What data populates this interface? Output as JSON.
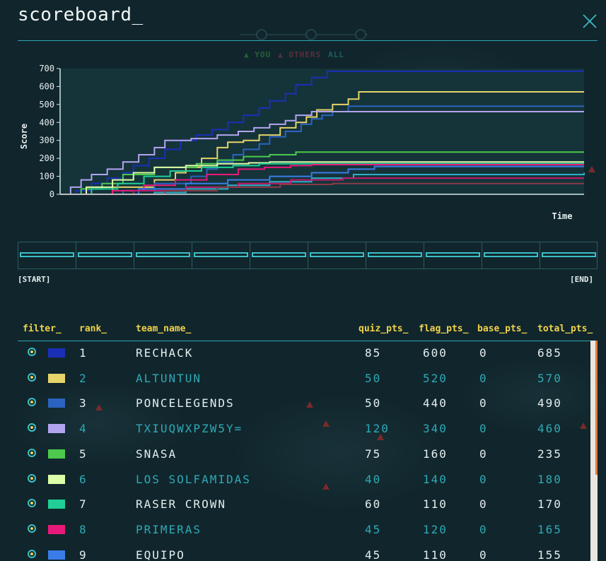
{
  "title": "scoreboard_",
  "legend_tabs": [
    {
      "label": "▲ YOU",
      "color": "#4fcf4f"
    },
    {
      "label": "▲ OTHERS",
      "color": "#e0405a"
    },
    {
      "label": "ALL",
      "color": "#3cc0c8"
    }
  ],
  "range": {
    "start_label": "[START]",
    "end_label": "[END]"
  },
  "table": {
    "headers": {
      "filter": "filter_",
      "rank": "rank_",
      "team_name": "team_name_",
      "quiz_pts": "quiz_pts_",
      "flag_pts": "flag_pts_",
      "base_pts": "base_pts_",
      "total_pts": "total_pts_"
    },
    "rows": [
      {
        "rank": "1",
        "team": "RECHACK",
        "quiz": "85",
        "flag": "600",
        "base": "0",
        "total": "685",
        "color": "#1a2fb8"
      },
      {
        "rank": "2",
        "team": "ALTUNTUN",
        "quiz": "50",
        "flag": "520",
        "base": "0",
        "total": "570",
        "color": "#e6d36a"
      },
      {
        "rank": "3",
        "team": "PONCELEGENDS",
        "quiz": "50",
        "flag": "440",
        "base": "0",
        "total": "490",
        "color": "#2a64c0"
      },
      {
        "rank": "4",
        "team": "TXIUQWXPZW5Y=",
        "quiz": "120",
        "flag": "340",
        "base": "0",
        "total": "460",
        "color": "#b3a4f0"
      },
      {
        "rank": "5",
        "team": "SNASA",
        "quiz": "75",
        "flag": "160",
        "base": "0",
        "total": "235",
        "color": "#4cc94c"
      },
      {
        "rank": "6",
        "team": "LOS SOLFAMIDAS",
        "quiz": "40",
        "flag": "140",
        "base": "0",
        "total": "180",
        "color": "#ddffa8"
      },
      {
        "rank": "7",
        "team": "RASER CROWN",
        "quiz": "60",
        "flag": "110",
        "base": "0",
        "total": "170",
        "color": "#1fcf96"
      },
      {
        "rank": "8",
        "team": "PRIMERAS",
        "quiz": "45",
        "flag": "120",
        "base": "0",
        "total": "165",
        "color": "#e8197a"
      },
      {
        "rank": "9",
        "team": "EQUIPO",
        "quiz": "45",
        "flag": "110",
        "base": "0",
        "total": "155",
        "color": "#3a7de8"
      }
    ]
  },
  "chart_data": {
    "type": "line",
    "xlabel": "Time",
    "ylabel": "Score",
    "ylim": [
      0,
      700
    ],
    "yticks": [
      0,
      100,
      200,
      300,
      400,
      500,
      600,
      700
    ],
    "xlim": [
      0,
      100
    ],
    "series": [
      {
        "color": "#1a2fb8",
        "points": [
          [
            0,
            0
          ],
          [
            3,
            20
          ],
          [
            6,
            60
          ],
          [
            9,
            90
          ],
          [
            12,
            120
          ],
          [
            14,
            160
          ],
          [
            17,
            200
          ],
          [
            20,
            250
          ],
          [
            23,
            300
          ],
          [
            26,
            330
          ],
          [
            29,
            360
          ],
          [
            32,
            400
          ],
          [
            35,
            440
          ],
          [
            38,
            480
          ],
          [
            40,
            520
          ],
          [
            43,
            560
          ],
          [
            45,
            610
          ],
          [
            48,
            650
          ],
          [
            51,
            685
          ],
          [
            100,
            685
          ]
        ]
      },
      {
        "color": "#e6d36a",
        "points": [
          [
            0,
            0
          ],
          [
            10,
            40
          ],
          [
            18,
            80
          ],
          [
            22,
            120
          ],
          [
            24,
            150
          ],
          [
            27,
            200
          ],
          [
            30,
            260
          ],
          [
            32,
            290
          ],
          [
            35,
            300
          ],
          [
            38,
            330
          ],
          [
            42,
            370
          ],
          [
            45,
            400
          ],
          [
            47,
            430
          ],
          [
            49,
            470
          ],
          [
            52,
            500
          ],
          [
            55,
            530
          ],
          [
            57,
            570
          ],
          [
            100,
            570
          ]
        ]
      },
      {
        "color": "#2a64c0",
        "points": [
          [
            0,
            0
          ],
          [
            12,
            20
          ],
          [
            18,
            60
          ],
          [
            25,
            100
          ],
          [
            28,
            140
          ],
          [
            30,
            180
          ],
          [
            33,
            220
          ],
          [
            35,
            250
          ],
          [
            38,
            280
          ],
          [
            40,
            320
          ],
          [
            43,
            350
          ],
          [
            46,
            390
          ],
          [
            48,
            420
          ],
          [
            50,
            440
          ],
          [
            52,
            460
          ],
          [
            55,
            490
          ],
          [
            100,
            490
          ]
        ]
      },
      {
        "color": "#b3a4f0",
        "points": [
          [
            0,
            0
          ],
          [
            2,
            40
          ],
          [
            4,
            80
          ],
          [
            6,
            110
          ],
          [
            9,
            140
          ],
          [
            12,
            180
          ],
          [
            15,
            220
          ],
          [
            18,
            260
          ],
          [
            20,
            300
          ],
          [
            25,
            310
          ],
          [
            30,
            330
          ],
          [
            34,
            350
          ],
          [
            37,
            370
          ],
          [
            40,
            390
          ],
          [
            43,
            410
          ],
          [
            45,
            440
          ],
          [
            48,
            460
          ],
          [
            100,
            460
          ]
        ]
      },
      {
        "color": "#4cc94c",
        "points": [
          [
            0,
            0
          ],
          [
            4,
            30
          ],
          [
            8,
            60
          ],
          [
            12,
            110
          ],
          [
            18,
            150
          ],
          [
            26,
            170
          ],
          [
            30,
            190
          ],
          [
            35,
            210
          ],
          [
            40,
            220
          ],
          [
            45,
            235
          ],
          [
            100,
            235
          ]
        ]
      },
      {
        "color": "#ddffa8",
        "points": [
          [
            0,
            0
          ],
          [
            5,
            40
          ],
          [
            10,
            80
          ],
          [
            14,
            120
          ],
          [
            18,
            150
          ],
          [
            24,
            160
          ],
          [
            30,
            170
          ],
          [
            36,
            175
          ],
          [
            40,
            180
          ],
          [
            100,
            180
          ]
        ]
      },
      {
        "color": "#1fcf96",
        "points": [
          [
            0,
            0
          ],
          [
            6,
            30
          ],
          [
            11,
            60
          ],
          [
            16,
            100
          ],
          [
            21,
            130
          ],
          [
            27,
            150
          ],
          [
            33,
            160
          ],
          [
            38,
            170
          ],
          [
            100,
            170
          ]
        ]
      },
      {
        "color": "#e8197a",
        "points": [
          [
            0,
            0
          ],
          [
            10,
            20
          ],
          [
            16,
            50
          ],
          [
            22,
            80
          ],
          [
            28,
            110
          ],
          [
            34,
            140
          ],
          [
            39,
            150
          ],
          [
            44,
            160
          ],
          [
            48,
            165
          ],
          [
            100,
            165
          ]
        ]
      },
      {
        "color": "#3a7de8",
        "points": [
          [
            0,
            0
          ],
          [
            15,
            30
          ],
          [
            24,
            60
          ],
          [
            32,
            80
          ],
          [
            40,
            100
          ],
          [
            48,
            120
          ],
          [
            55,
            140
          ],
          [
            60,
            155
          ],
          [
            100,
            155
          ]
        ]
      },
      {
        "color": "#2fb0c8",
        "points": [
          [
            0,
            0
          ],
          [
            18,
            10
          ],
          [
            24,
            30
          ],
          [
            32,
            50
          ],
          [
            40,
            70
          ],
          [
            48,
            90
          ],
          [
            56,
            110
          ],
          [
            100,
            120
          ]
        ]
      },
      {
        "color": "#c2186b",
        "points": [
          [
            0,
            0
          ],
          [
            14,
            20
          ],
          [
            24,
            40
          ],
          [
            34,
            60
          ],
          [
            44,
            80
          ],
          [
            54,
            90
          ],
          [
            100,
            90
          ]
        ]
      },
      {
        "color": "#8a3a48",
        "points": [
          [
            0,
            0
          ],
          [
            20,
            20
          ],
          [
            30,
            40
          ],
          [
            42,
            55
          ],
          [
            52,
            60
          ],
          [
            100,
            60
          ]
        ]
      }
    ]
  }
}
